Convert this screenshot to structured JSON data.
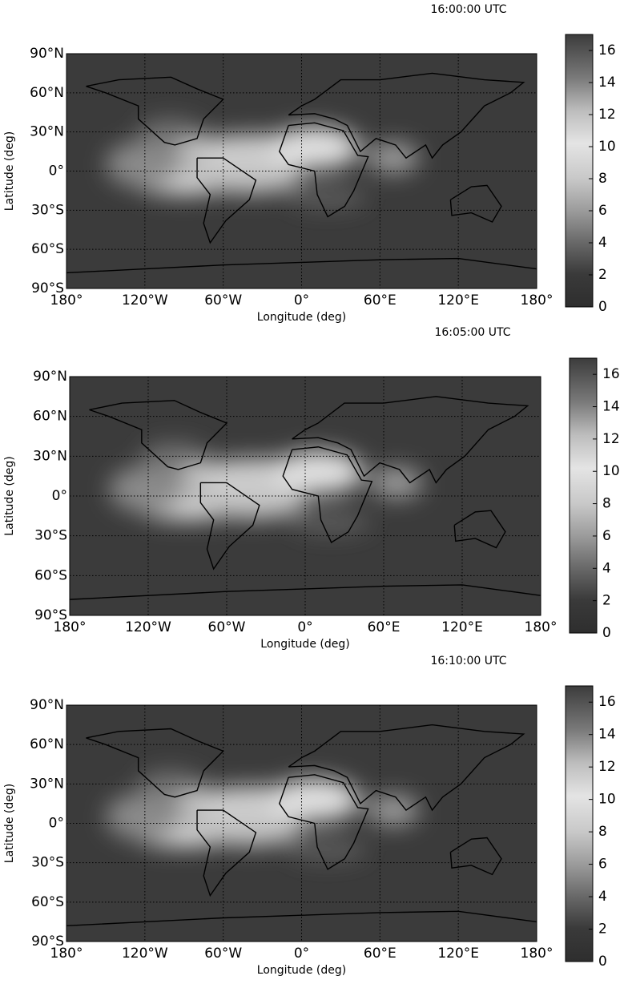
{
  "chart_data": [
    {
      "type": "map",
      "title": "16:00:00 UTC",
      "xlabel": "Longitude (deg)",
      "ylabel": "Latitude (deg)",
      "xlim": [
        -180,
        180
      ],
      "ylim": [
        -90,
        90
      ],
      "grid": true,
      "xticks": [
        {
          "value": -180,
          "label": "180°"
        },
        {
          "value": -120,
          "label": "120°W"
        },
        {
          "value": -60,
          "label": "60°W"
        },
        {
          "value": 0,
          "label": "0°"
        },
        {
          "value": 60,
          "label": "60°E"
        },
        {
          "value": 120,
          "label": "120°E"
        },
        {
          "value": 180,
          "label": "180°"
        }
      ],
      "yticks": [
        {
          "value": -90,
          "label": "90°S"
        },
        {
          "value": -60,
          "label": "60°S"
        },
        {
          "value": -30,
          "label": "30°S"
        },
        {
          "value": 0,
          "label": "0°"
        },
        {
          "value": 30,
          "label": "30°N"
        },
        {
          "value": 60,
          "label": "60°N"
        },
        {
          "value": 90,
          "label": "90°N"
        }
      ],
      "clim": [
        0,
        17
      ],
      "cticks": [
        0,
        2,
        4,
        6,
        8,
        10,
        12,
        14,
        16
      ]
    },
    {
      "type": "map",
      "title": "16:05:00 UTC",
      "xlabel": "Longitude (deg)",
      "ylabel": "Latitude (deg)",
      "xlim": [
        -180,
        180
      ],
      "ylim": [
        -90,
        90
      ],
      "grid": true,
      "xticks": [
        {
          "value": -180,
          "label": "180°"
        },
        {
          "value": -120,
          "label": "120°W"
        },
        {
          "value": -60,
          "label": "60°W"
        },
        {
          "value": 0,
          "label": "0°"
        },
        {
          "value": 60,
          "label": "60°E"
        },
        {
          "value": 120,
          "label": "120°E"
        },
        {
          "value": 180,
          "label": "180°"
        }
      ],
      "yticks": [
        {
          "value": -90,
          "label": "90°S"
        },
        {
          "value": -60,
          "label": "60°S"
        },
        {
          "value": -30,
          "label": "30°S"
        },
        {
          "value": 0,
          "label": "0°"
        },
        {
          "value": 30,
          "label": "30°N"
        },
        {
          "value": 60,
          "label": "60°N"
        },
        {
          "value": 90,
          "label": "90°N"
        }
      ],
      "clim": [
        0,
        17
      ],
      "cticks": [
        0,
        2,
        4,
        6,
        8,
        10,
        12,
        14,
        16
      ]
    },
    {
      "type": "map",
      "title": "16:10:00 UTC",
      "xlabel": "Longitude (deg)",
      "ylabel": "Latitude (deg)",
      "xlim": [
        -180,
        180
      ],
      "ylim": [
        -90,
        90
      ],
      "grid": true,
      "xticks": [
        {
          "value": -180,
          "label": "180°"
        },
        {
          "value": -120,
          "label": "120°W"
        },
        {
          "value": -60,
          "label": "60°W"
        },
        {
          "value": 0,
          "label": "0°"
        },
        {
          "value": 60,
          "label": "60°E"
        },
        {
          "value": 120,
          "label": "120°E"
        },
        {
          "value": 180,
          "label": "180°"
        }
      ],
      "yticks": [
        {
          "value": -90,
          "label": "90°S"
        },
        {
          "value": -60,
          "label": "60°S"
        },
        {
          "value": -30,
          "label": "30°S"
        },
        {
          "value": 0,
          "label": "0°"
        },
        {
          "value": 30,
          "label": "30°N"
        },
        {
          "value": 60,
          "label": "60°N"
        },
        {
          "value": 90,
          "label": "90°N"
        }
      ],
      "clim": [
        0,
        17
      ],
      "cticks": [
        0,
        2,
        4,
        6,
        8,
        10,
        12,
        14,
        16
      ]
    }
  ]
}
